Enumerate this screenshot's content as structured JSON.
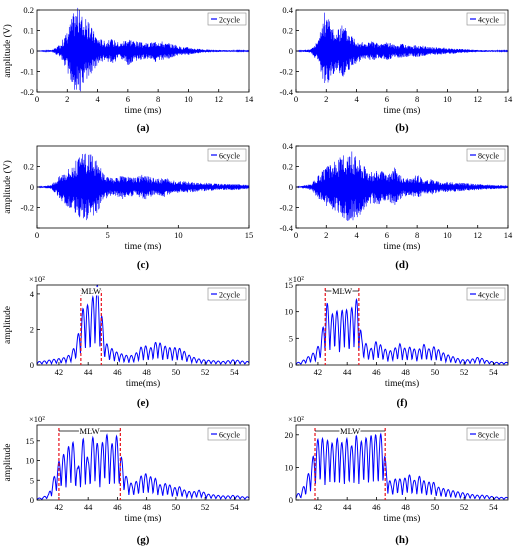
{
  "colors": {
    "signal": "#0000ff",
    "marker": "#e8101a",
    "axis": "#000000"
  },
  "chart_data": [
    {
      "id": "a",
      "type": "line",
      "panel_label": "(a)",
      "legend": "2cycle",
      "xlabel": "time (ms)",
      "ylabel": "amplitude (V)",
      "xlim": [
        0,
        14
      ],
      "ylim": [
        -0.2,
        0.2
      ],
      "xticks": [
        0,
        2,
        4,
        6,
        8,
        10,
        12,
        14
      ],
      "yticks": [
        -0.2,
        -0.1,
        0,
        0.1,
        0.2
      ],
      "ytick_labels": [
        "-0.2",
        "-0.1",
        "0",
        "0.1",
        "0.2"
      ],
      "envelope": {
        "x": [
          0,
          1,
          1.5,
          2,
          2.4,
          2.7,
          3.0,
          3.3,
          3.6,
          4.0,
          4.5,
          5.0,
          5.5,
          6.0,
          6.5,
          7.0,
          7.5,
          8.0,
          8.5,
          9.0,
          9.5,
          10,
          10.5,
          11,
          12,
          13,
          14
        ],
        "y": [
          0,
          0.005,
          0.03,
          0.1,
          0.19,
          0.22,
          0.18,
          0.15,
          0.12,
          0.07,
          0.05,
          0.06,
          0.04,
          0.07,
          0.05,
          0.04,
          0.04,
          0.06,
          0.04,
          0.035,
          0.02,
          0.02,
          0.012,
          0.008,
          0.005,
          0.003,
          0.002
        ]
      }
    },
    {
      "id": "b",
      "type": "line",
      "panel_label": "(b)",
      "legend": "4cycle",
      "xlabel": "time (ms)",
      "ylabel": "",
      "xlim": [
        0,
        14
      ],
      "ylim": [
        -0.4,
        0.4
      ],
      "xticks": [
        0,
        2,
        4,
        6,
        8,
        10,
        12,
        14
      ],
      "yticks": [
        -0.4,
        -0.2,
        0,
        0.2,
        0.4
      ],
      "ytick_labels": [
        "-0.4",
        "-0.2",
        "0",
        "0.2",
        "0.4"
      ],
      "envelope": {
        "x": [
          0,
          1,
          1.5,
          1.9,
          2.3,
          2.7,
          3.0,
          3.5,
          4.0,
          4.5,
          5.0,
          5.5,
          6.0,
          6.5,
          7.0,
          7.5,
          8.0,
          8.5,
          9.0,
          10,
          11,
          12,
          13,
          14
        ],
        "y": [
          0,
          0.02,
          0.12,
          0.4,
          0.3,
          0.18,
          0.28,
          0.2,
          0.12,
          0.08,
          0.1,
          0.07,
          0.1,
          0.06,
          0.07,
          0.05,
          0.06,
          0.05,
          0.04,
          0.03,
          0.02,
          0.01,
          0.008,
          0.005
        ]
      }
    },
    {
      "id": "c",
      "type": "line",
      "panel_label": "(c)",
      "legend": "6cycle",
      "xlabel": "time (ms)",
      "ylabel": "amplitude (V)",
      "xlim": [
        0,
        15
      ],
      "ylim": [
        -0.4,
        0.4
      ],
      "xticks": [
        0,
        5,
        10,
        15
      ],
      "yticks": [
        -0.4,
        -0.2,
        0,
        0.2
      ],
      "ytick_labels": [
        "",
        "-0.2",
        "0",
        "0.2"
      ],
      "envelope": {
        "x": [
          0,
          1,
          1.5,
          2,
          2.5,
          3.0,
          3.5,
          4.0,
          4.5,
          5.0,
          5.5,
          6.0,
          6.5,
          7.0,
          7.5,
          8.0,
          8.5,
          9.0,
          9.5,
          10,
          11,
          12,
          13,
          14,
          15
        ],
        "y": [
          0,
          0.02,
          0.1,
          0.18,
          0.22,
          0.3,
          0.35,
          0.3,
          0.2,
          0.1,
          0.08,
          0.12,
          0.1,
          0.09,
          0.13,
          0.1,
          0.08,
          0.1,
          0.07,
          0.06,
          0.05,
          0.04,
          0.03,
          0.03,
          0.02
        ]
      }
    },
    {
      "id": "d",
      "type": "line",
      "panel_label": "(d)",
      "legend": "8cycle",
      "xlabel": "time (ms)",
      "ylabel": "",
      "xlim": [
        0,
        14
      ],
      "ylim": [
        -0.4,
        0.4
      ],
      "xticks": [
        0,
        2,
        4,
        6,
        8,
        10,
        12,
        14
      ],
      "yticks": [
        -0.4,
        -0.2,
        0,
        0.2,
        0.4
      ],
      "ytick_labels": [
        "-0.4",
        "-0.2",
        "0",
        "0.2",
        "0.4"
      ],
      "envelope": {
        "x": [
          0,
          1,
          1.5,
          2,
          2.5,
          3.0,
          3.5,
          4.0,
          4.5,
          5.0,
          5.5,
          6.0,
          6.5,
          7.0,
          7.5,
          8.0,
          8.5,
          9.0,
          9.5,
          10,
          11,
          12,
          13,
          14
        ],
        "y": [
          0,
          0.03,
          0.12,
          0.2,
          0.25,
          0.3,
          0.37,
          0.32,
          0.22,
          0.15,
          0.18,
          0.12,
          0.2,
          0.1,
          0.08,
          0.12,
          0.07,
          0.08,
          0.05,
          0.05,
          0.04,
          0.03,
          0.02,
          0.015
        ]
      }
    },
    {
      "id": "e",
      "type": "line",
      "panel_label": "(e)",
      "legend": "2cycle",
      "xlabel": "time(ms)",
      "ylabel": "amplitude",
      "scale_label": "×10²",
      "annotation": "MLW",
      "markers": [
        43.5,
        44.9
      ],
      "xlim": [
        40.5,
        55
      ],
      "ylim": [
        0,
        4.5
      ],
      "xticks": [
        42,
        44,
        46,
        48,
        50,
        52,
        54
      ],
      "yticks": [
        0,
        2,
        4
      ],
      "ytick_labels": [
        "0",
        "2",
        "4"
      ],
      "peaks": {
        "x": [
          40.8,
          41.5,
          42.3,
          42.8,
          43.1,
          43.4,
          43.6,
          43.9,
          44.1,
          44.35,
          44.6,
          44.8,
          45.1,
          45.4,
          45.7,
          46.0,
          46.4,
          46.8,
          47.2,
          47.6,
          47.9,
          48.2,
          48.5,
          48.8,
          49.1,
          49.4,
          49.7,
          50.0,
          50.4,
          50.8,
          51.3,
          51.8,
          52.5,
          53.2,
          54.0,
          54.7
        ],
        "y": [
          0.2,
          0.3,
          0.4,
          0.6,
          1.1,
          2.0,
          3.1,
          3.6,
          2.9,
          4.0,
          4.6,
          3.9,
          1.5,
          1.0,
          0.9,
          0.7,
          0.6,
          0.5,
          0.6,
          1.0,
          1.1,
          0.9,
          1.2,
          1.4,
          1.0,
          1.1,
          0.9,
          1.0,
          0.9,
          0.6,
          0.4,
          0.3,
          0.25,
          0.2,
          0.3,
          0.2
        ]
      }
    },
    {
      "id": "f",
      "type": "line",
      "panel_label": "(f)",
      "legend": "4cycle",
      "xlabel": "time(ms)",
      "ylabel": "",
      "scale_label": "×10²",
      "annotation": "MLW",
      "markers": [
        42.5,
        44.8
      ],
      "xlim": [
        40.5,
        55
      ],
      "ylim": [
        0,
        15
      ],
      "xticks": [
        42,
        44,
        46,
        48,
        50,
        52,
        54
      ],
      "yticks": [
        0,
        5,
        10,
        15
      ],
      "ytick_labels": [
        "0",
        "5",
        "10",
        "15"
      ],
      "peaks": {
        "x": [
          40.8,
          41.3,
          41.8,
          42.2,
          42.6,
          42.9,
          43.2,
          43.5,
          43.8,
          44.1,
          44.4,
          44.7,
          45.0,
          45.3,
          45.6,
          46.0,
          46.4,
          46.8,
          47.2,
          47.6,
          48.0,
          48.4,
          48.8,
          49.2,
          49.6,
          50.0,
          50.4,
          50.8,
          51.3,
          51.8,
          52.4,
          53.0,
          53.6,
          54.2,
          54.8
        ],
        "y": [
          0.5,
          1.5,
          2.5,
          4.5,
          12.0,
          9.0,
          11.0,
          8.5,
          12.0,
          9.0,
          11.5,
          12.5,
          5.0,
          4.0,
          3.0,
          4.5,
          3.5,
          2.5,
          3.0,
          4.0,
          3.0,
          3.5,
          2.5,
          4.0,
          3.0,
          3.5,
          2.5,
          2.0,
          1.5,
          1.0,
          1.0,
          1.5,
          0.8,
          0.5,
          0.5
        ]
      }
    },
    {
      "id": "g",
      "type": "line",
      "panel_label": "(g)",
      "legend": "6cycle",
      "xlabel": "time (ms)",
      "ylabel": "amplitude",
      "scale_label": "×10²",
      "annotation": "MLW",
      "markers": [
        42.0,
        46.2
      ],
      "xlim": [
        40.5,
        55
      ],
      "ylim": [
        0,
        19
      ],
      "xticks": [
        42,
        44,
        46,
        48,
        50,
        52,
        54
      ],
      "yticks": [
        0,
        5,
        10,
        15
      ],
      "ytick_labels": [
        "0",
        "5",
        "10",
        "15"
      ],
      "peaks": {
        "x": [
          40.8,
          41.3,
          41.8,
          42.1,
          42.5,
          42.9,
          43.3,
          43.7,
          44.0,
          44.4,
          44.8,
          45.2,
          45.5,
          45.9,
          46.2,
          46.6,
          47.0,
          47.4,
          47.8,
          48.2,
          48.6,
          49.0,
          49.4,
          49.8,
          50.2,
          50.6,
          51.1,
          51.6,
          52.2,
          52.8,
          53.4,
          54.0,
          54.6
        ],
        "y": [
          0.5,
          1.5,
          7.5,
          11.0,
          12.0,
          16.0,
          8.0,
          16.5,
          10.0,
          17.5,
          12.0,
          18.0,
          13.0,
          17.0,
          12.0,
          6.0,
          4.0,
          5.0,
          7.0,
          6.0,
          5.5,
          3.5,
          4.5,
          3.0,
          3.5,
          2.5,
          2.0,
          2.5,
          1.5,
          1.2,
          1.0,
          1.2,
          0.8
        ]
      }
    },
    {
      "id": "h",
      "type": "line",
      "panel_label": "(h)",
      "legend": "8cycle",
      "xlabel": "time (ms)",
      "ylabel": "",
      "scale_label": "×10²",
      "annotation": "MLW",
      "markers": [
        41.8,
        46.6
      ],
      "xlim": [
        40.5,
        55
      ],
      "ylim": [
        0,
        23
      ],
      "xticks": [
        42,
        44,
        46,
        48,
        50,
        52,
        54
      ],
      "yticks": [
        0,
        10,
        20
      ],
      "ytick_labels": [
        "0",
        "10",
        "20"
      ],
      "peaks": {
        "x": [
          40.8,
          41.2,
          41.6,
          41.9,
          42.2,
          42.5,
          42.8,
          43.1,
          43.4,
          43.7,
          44.0,
          44.3,
          44.6,
          44.9,
          45.2,
          45.5,
          45.8,
          46.1,
          46.4,
          46.7,
          47.0,
          47.4,
          47.8,
          48.2,
          48.6,
          49.0,
          49.4,
          49.8,
          50.2,
          50.6,
          51.1,
          51.6,
          52.2,
          52.8,
          53.4,
          54.0,
          54.6
        ],
        "y": [
          2.0,
          6.0,
          12.0,
          18.0,
          20.0,
          17.0,
          19.5,
          16.0,
          20.0,
          17.0,
          19.0,
          16.5,
          20.0,
          17.5,
          19.5,
          18.0,
          22.0,
          18.0,
          21.5,
          9.0,
          5.0,
          7.0,
          6.0,
          8.0,
          6.0,
          7.5,
          5.0,
          6.0,
          4.0,
          3.5,
          3.0,
          2.5,
          2.0,
          1.5,
          1.5,
          1.0,
          0.8
        ]
      }
    }
  ]
}
